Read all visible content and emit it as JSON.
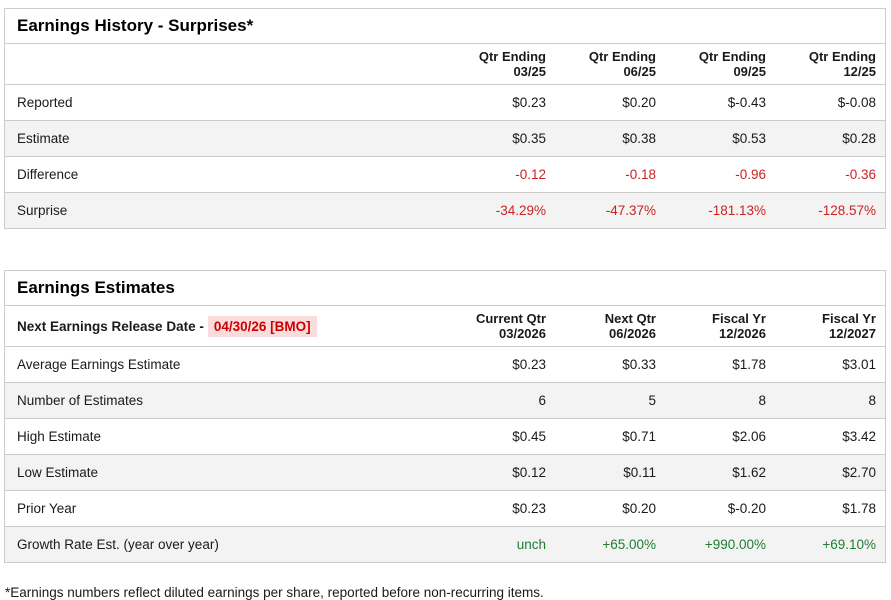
{
  "colors": {
    "text": "#1a1a1a",
    "border": "#cccccc",
    "row_alt": "#f3f3f3",
    "negative": "#cc2222",
    "positive": "#1e7e34",
    "highlight_text": "#cc0000",
    "highlight_bg": "#fbdcdc"
  },
  "history": {
    "title": "Earnings History - Surprises*",
    "columns": [
      [
        "Qtr Ending",
        "03/25"
      ],
      [
        "Qtr Ending",
        "06/25"
      ],
      [
        "Qtr Ending",
        "09/25"
      ],
      [
        "Qtr Ending",
        "12/25"
      ]
    ],
    "rows": [
      {
        "label": "Reported",
        "values": [
          "$0.23",
          "$0.20",
          "$-0.43",
          "$-0.08"
        ]
      },
      {
        "label": "Estimate",
        "values": [
          "$0.35",
          "$0.38",
          "$0.53",
          "$0.28"
        ]
      },
      {
        "label": "Difference",
        "values": [
          "-0.12",
          "-0.18",
          "-0.96",
          "-0.36"
        ],
        "color": "negative"
      },
      {
        "label": "Surprise",
        "values": [
          "-34.29%",
          "-47.37%",
          "-181.13%",
          "-128.57%"
        ],
        "color": "negative"
      }
    ]
  },
  "estimates": {
    "title": "Earnings Estimates",
    "release_label": "Next Earnings Release Date -",
    "release_date": "04/30/26 [BMO]",
    "columns": [
      [
        "Current Qtr",
        "03/2026"
      ],
      [
        "Next Qtr",
        "06/2026"
      ],
      [
        "Fiscal Yr",
        "12/2026"
      ],
      [
        "Fiscal Yr",
        "12/2027"
      ]
    ],
    "rows": [
      {
        "label": "Average Earnings Estimate",
        "values": [
          "$0.23",
          "$0.33",
          "$1.78",
          "$3.01"
        ]
      },
      {
        "label": "Number of Estimates",
        "values": [
          "6",
          "5",
          "8",
          "8"
        ]
      },
      {
        "label": "High Estimate",
        "values": [
          "$0.45",
          "$0.71",
          "$2.06",
          "$3.42"
        ]
      },
      {
        "label": "Low Estimate",
        "values": [
          "$0.12",
          "$0.11",
          "$1.62",
          "$2.70"
        ]
      },
      {
        "label": "Prior Year",
        "values": [
          "$0.23",
          "$0.20",
          "$-0.20",
          "$1.78"
        ]
      },
      {
        "label": "Growth Rate Est. (year over year)",
        "values": [
          "unch",
          "+65.00%",
          "+990.00%",
          "+69.10%"
        ],
        "color": "positive"
      }
    ]
  },
  "footnote": "*Earnings numbers reflect diluted earnings per share, reported before non-recurring items."
}
